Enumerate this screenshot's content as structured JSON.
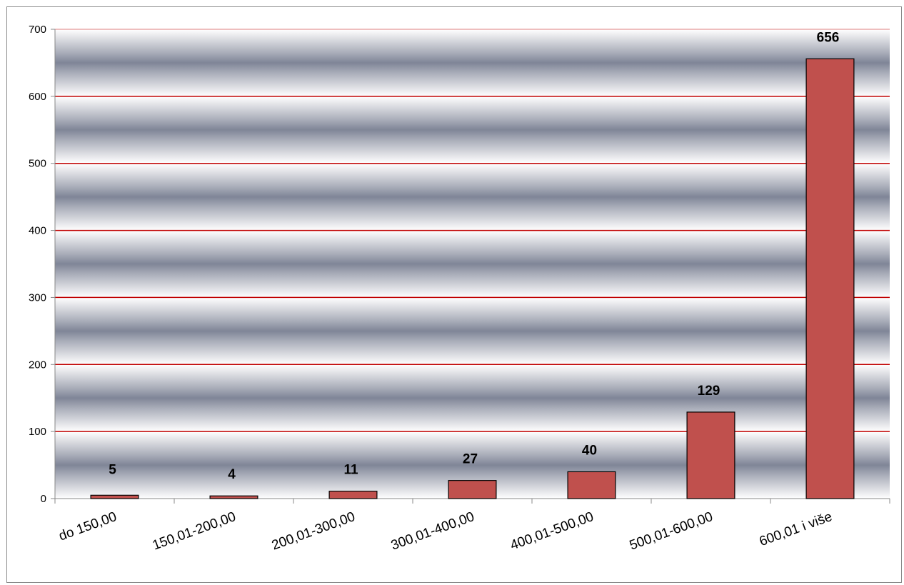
{
  "chart_data": {
    "type": "bar",
    "categories": [
      "do 150,00",
      "150,01-200,00",
      "200,01-300,00",
      "300,01-400,00",
      "400,01-500,00",
      "500,01-600,00",
      "600,01 i više"
    ],
    "values": [
      5,
      4,
      11,
      27,
      40,
      129,
      656
    ],
    "data_labels": [
      "5",
      "4",
      "11",
      "27",
      "40",
      "129",
      "656"
    ],
    "ylim": [
      0,
      700
    ],
    "yticks": [
      0,
      100,
      200,
      300,
      400,
      500,
      600,
      700
    ],
    "ytick_labels": [
      "0",
      "100",
      "200",
      "300",
      "400",
      "500",
      "600",
      "700"
    ],
    "title": "",
    "xlabel": "",
    "ylabel": "",
    "grid": true,
    "legend": "none",
    "colors": {
      "bar_fill": "#c0504d",
      "bar_stroke": "#000000",
      "gridline": "#c00000",
      "plot_band_dark": "#7f8597",
      "plot_band_light": "#f4f4f6",
      "axis": "#888888"
    }
  }
}
